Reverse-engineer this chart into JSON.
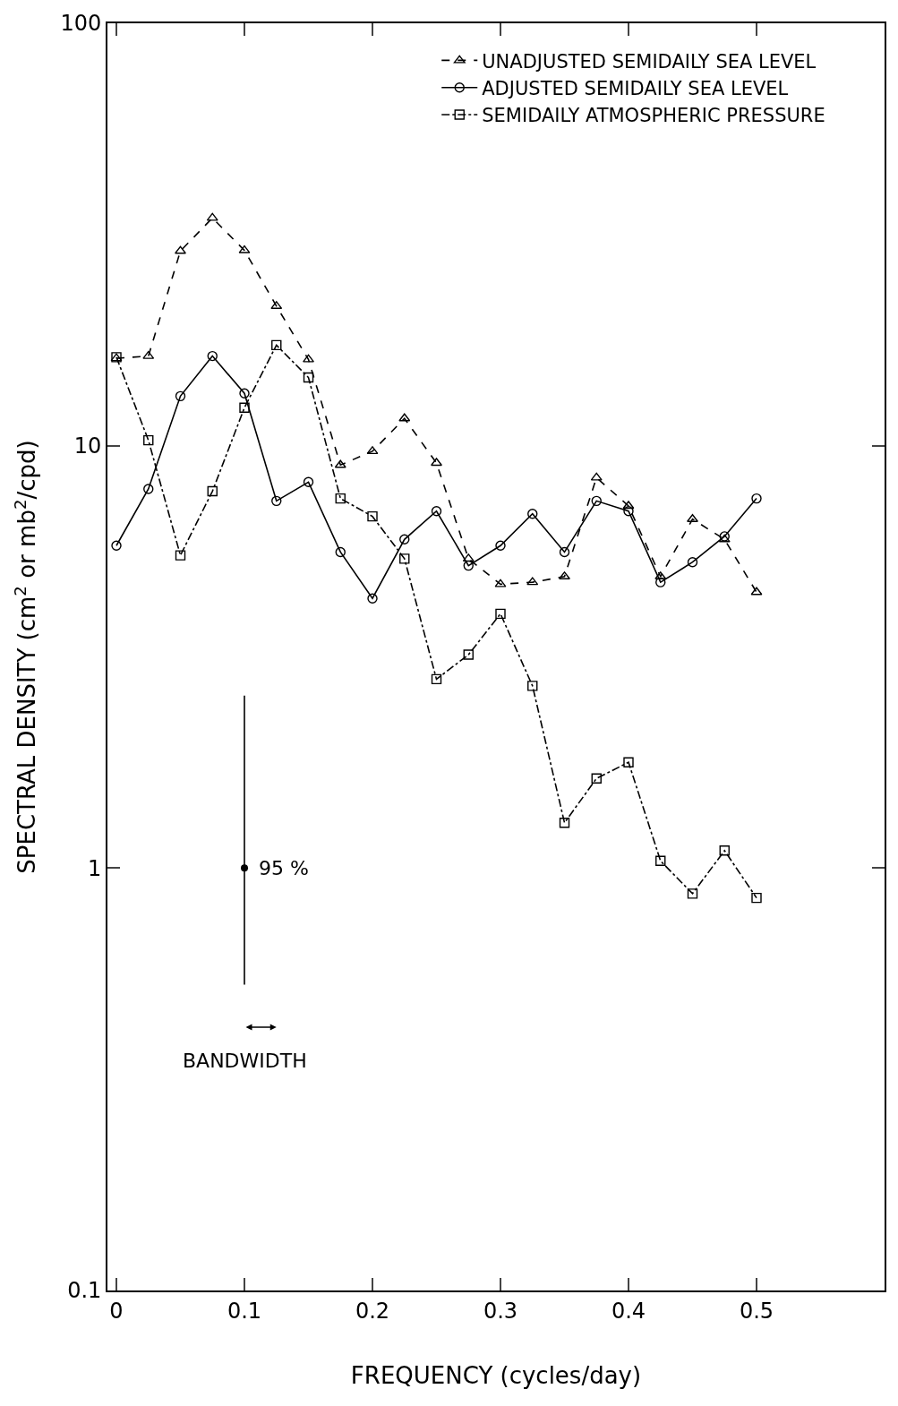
{
  "chart_data": {
    "type": "line",
    "xlabel": "FREQUENCY (cycles/day)",
    "ylabel": "SPECTRAL DENSITY (cm$^{2}$ or mb$^{2}$/cpd)",
    "x": [
      0,
      0.025,
      0.05,
      0.075,
      0.1,
      0.125,
      0.15,
      0.175,
      0.2,
      0.225,
      0.25,
      0.275,
      0.3,
      0.325,
      0.35,
      0.375,
      0.4,
      0.425,
      0.45,
      0.475,
      0.5
    ],
    "series": [
      {
        "name": "UNADJUSTED SEMIDAILY SEA LEVEL",
        "color": "#000000",
        "marker": "triangle",
        "line_style": "dashed",
        "values": [
          16.1,
          16.3,
          28.9,
          34.6,
          29.0,
          21.4,
          16.0,
          9.0,
          9.7,
          11.6,
          9.1,
          5.4,
          4.7,
          4.75,
          4.9,
          8.4,
          7.2,
          4.9,
          6.7,
          6.0,
          4.5
        ]
      },
      {
        "name": "ADJUSTED SEMIDAILY SEA LEVEL",
        "color": "#000000",
        "marker": "circle",
        "line_style": "solid",
        "values": [
          5.8,
          7.9,
          13.1,
          16.3,
          13.3,
          7.4,
          8.2,
          5.6,
          4.35,
          6.0,
          7.0,
          5.2,
          5.8,
          6.9,
          5.6,
          7.4,
          7.0,
          4.75,
          5.3,
          6.1,
          7.5
        ]
      },
      {
        "name": "SEMIDAILY ATMOSPHERIC PRESSURE",
        "color": "#000000",
        "marker": "square",
        "line_style": "dashdot",
        "values": [
          16.2,
          10.3,
          5.5,
          7.8,
          12.3,
          17.3,
          14.5,
          7.5,
          6.8,
          5.4,
          2.8,
          3.2,
          4.0,
          2.7,
          1.28,
          1.63,
          1.78,
          1.04,
          0.87,
          1.1,
          0.85
        ]
      },
      {
        "type": "scatter",
        "color": "#000000",
        "marker": "circle",
        "x": [
          0.1
        ],
        "values": [
          1
        ],
        "errors": [
          [
            0.53,
            2.56
          ]
        ]
      }
    ],
    "annotations": [
      {
        "text": "95 %",
        "x": 0.1,
        "y": 1
      },
      "BANDWIDTH"
    ],
    "log": "y",
    "xlim": [
      -0.007,
      0.6
    ],
    "ylim": [
      0.1,
      100
    ],
    "xticks": [
      0,
      0.1,
      0.2,
      0.3,
      0.4,
      0.5
    ],
    "yticks": [
      0.1,
      1,
      10,
      100
    ],
    "legend": "top right"
  }
}
